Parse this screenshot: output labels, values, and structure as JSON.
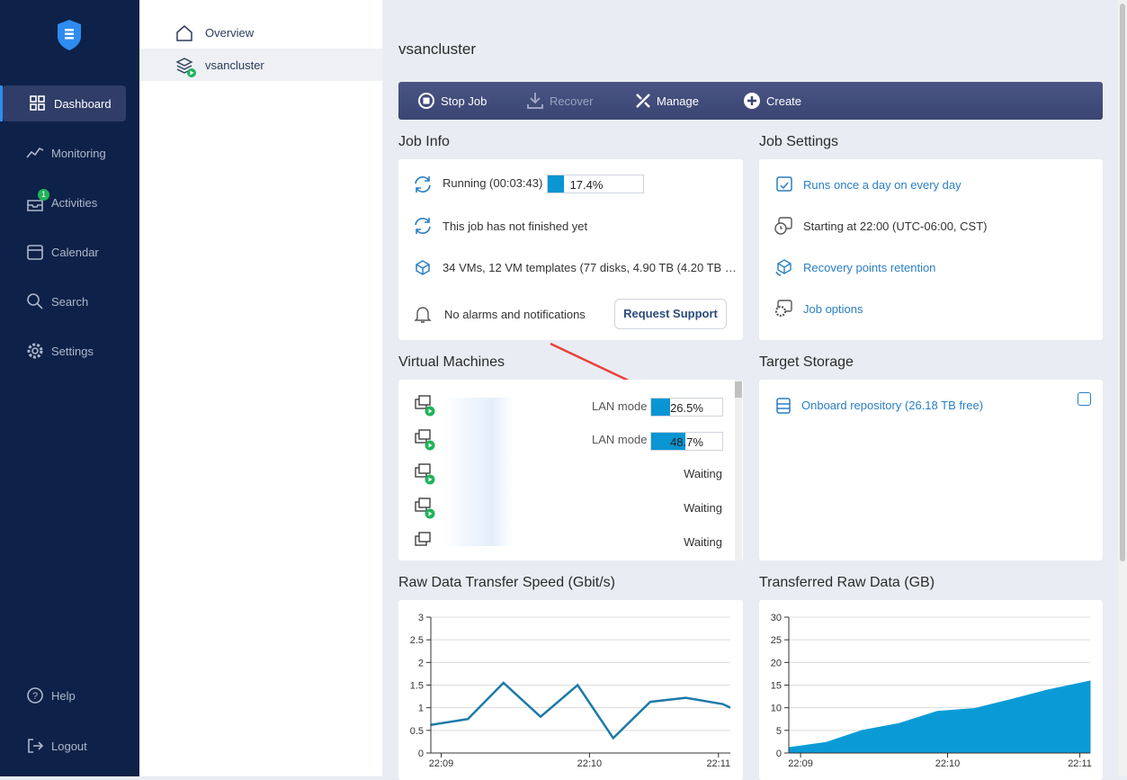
{
  "sidebar": {
    "items": [
      "Dashboard",
      "Monitoring",
      "Activities",
      "Calendar",
      "Search",
      "Settings",
      "Help",
      "Logout"
    ],
    "activities_badge": 1
  },
  "tree": [
    "Overview",
    "vsancluster"
  ],
  "header": {
    "title": "vsancluster"
  },
  "toolbar": [
    "Stop Job",
    "Recover",
    "Manage",
    "Create"
  ],
  "job_info": {
    "title": "Job Info",
    "status": "Running (00:03:43)",
    "progress": 17.4,
    "progress_label": "17.4%",
    "finish": "This job has not finished yet",
    "objects": "34 VMs, 12 VM templates (77 disks, 4.90 TB (4.20 TB …",
    "alarms": "No alarms and notifications",
    "button": "Request Support"
  },
  "job_settings": {
    "title": "Job Settings",
    "schedule": "Runs once a day on every day",
    "start": "Starting at 22:00 (UTC-06:00, CST)",
    "retention": "Recovery points retention",
    "options": "Job options"
  },
  "virtual_machines": {
    "title": "Virtual Machines",
    "rows": [
      {
        "mode": "LAN mode",
        "progress": 26.5,
        "progress_label": "26.5%"
      },
      {
        "mode": "LAN mode",
        "progress": 48.7,
        "progress_label": "48.7%"
      },
      {
        "status": "Waiting"
      },
      {
        "status": "Waiting"
      },
      {
        "status": "Waiting"
      }
    ]
  },
  "target_storage": {
    "title": "Target Storage",
    "repository": "Onboard repository (26.18 TB free)"
  },
  "chart_data": [
    {
      "type": "line",
      "title": "Raw Data Transfer Speed (Gbit/s)",
      "color": "#1d7aa8",
      "x": [
        8.93,
        9.18,
        9.42,
        9.67,
        9.92,
        10.16,
        10.41,
        10.65,
        10.9,
        10.95
      ],
      "values": [
        0.62,
        0.75,
        1.55,
        0.8,
        1.5,
        0.33,
        1.13,
        1.22,
        1.08,
        1.0
      ],
      "xlim": [
        8.93,
        10.95
      ],
      "xticks": [
        {
          "value": 9,
          "label": "22:09"
        },
        {
          "value": 10,
          "label": "22:10"
        },
        {
          "value": 10.87,
          "label": "22:11"
        }
      ],
      "ylim": [
        0,
        3
      ],
      "yticks": [
        0,
        0.5,
        1,
        1.5,
        2,
        2.5,
        3
      ],
      "grid": true
    },
    {
      "type": "area",
      "title": "Transferred Raw Data (GB)",
      "color": "#0a9bd6",
      "x": [
        8.92,
        9.17,
        9.42,
        9.67,
        9.93,
        10.18,
        10.43,
        10.68,
        10.97
      ],
      "values": [
        1.2,
        2.3,
        5,
        6.5,
        9.2,
        9.8,
        11.8,
        13.9,
        15.9
      ],
      "xlim": [
        8.92,
        10.97
      ],
      "xticks": [
        {
          "value": 9,
          "label": "22:09"
        },
        {
          "value": 10,
          "label": "22:10"
        },
        {
          "value": 10.9,
          "label": "22:11"
        }
      ],
      "ylim": [
        0,
        30
      ],
      "yticks": [
        0,
        5,
        10,
        15,
        20,
        25,
        30
      ],
      "grid": true
    }
  ]
}
